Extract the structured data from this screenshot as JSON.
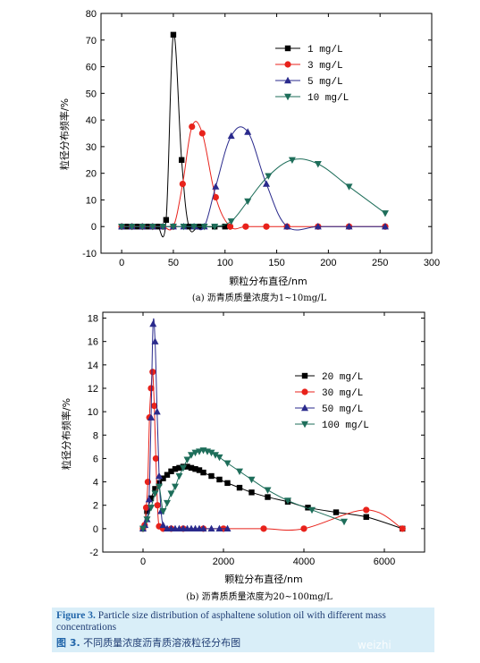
{
  "chart_data": [
    {
      "type": "line",
      "caption": "(a) 沥青质质量浓度为1~10mg/L",
      "xlabel": "颗粒分布直径/nm",
      "ylabel": "粒径分布频率/%",
      "xlim": [
        -20,
        300
      ],
      "ylim": [
        -10,
        80
      ],
      "xticks": [
        "0",
        "50",
        "100",
        "150",
        "200",
        "250",
        "300"
      ],
      "yticks": [
        "-10",
        "0",
        "10",
        "20",
        "30",
        "40",
        "50",
        "60",
        "70",
        "80"
      ],
      "legend_position": "top-right",
      "series": [
        {
          "name": "1 mg/L",
          "color": "#000000",
          "marker": "square",
          "x": [
            0,
            5,
            10,
            15,
            20,
            25,
            30,
            35,
            43,
            50,
            58,
            65,
            75,
            90,
            100
          ],
          "y": [
            0,
            0,
            0,
            0,
            0,
            0,
            0,
            0,
            2.5,
            72,
            25,
            0,
            0,
            0,
            0
          ]
        },
        {
          "name": "3 mg/L",
          "color": "#e8221b",
          "marker": "circle",
          "x": [
            0,
            10,
            20,
            30,
            40,
            50,
            59,
            68,
            78,
            91,
            105,
            120,
            140,
            160,
            190,
            220,
            255
          ],
          "y": [
            0,
            0,
            0,
            0,
            0,
            0,
            16,
            37.5,
            35,
            11,
            0,
            0,
            0,
            0,
            0,
            0,
            0
          ]
        },
        {
          "name": "5 mg/L",
          "color": "#2a2a8c",
          "marker": "triangle-up",
          "x": [
            0,
            10,
            20,
            30,
            40,
            50,
            60,
            70,
            80,
            91,
            106,
            122,
            140,
            160,
            190,
            220,
            255
          ],
          "y": [
            0,
            0,
            0,
            0,
            0,
            0,
            0,
            0,
            0,
            15,
            34,
            35.5,
            16,
            0,
            0,
            0,
            0
          ]
        },
        {
          "name": "10 mg/L",
          "color": "#1e6e5a",
          "marker": "triangle-down",
          "x": [
            0,
            10,
            20,
            30,
            40,
            50,
            60,
            70,
            80,
            90,
            106,
            122,
            142,
            165,
            190,
            220,
            255
          ],
          "y": [
            0,
            0,
            0,
            0,
            0,
            0,
            0,
            0,
            0,
            0,
            2,
            9.5,
            19,
            25,
            23.5,
            15,
            5
          ]
        }
      ]
    },
    {
      "type": "line",
      "caption": "(b) 沥青质质量浓度为20~100mg/L",
      "xlabel": "颗粒分布直径/nm",
      "ylabel": "粒径分布频率/%",
      "xlim": [
        -1000,
        7000
      ],
      "ylim": [
        -2,
        18.5
      ],
      "xticks": [
        "0",
        "2000",
        "4000",
        "6000"
      ],
      "yticks": [
        "-2",
        "0",
        "2",
        "4",
        "6",
        "8",
        "10",
        "12",
        "14",
        "16",
        "18"
      ],
      "legend_position": "right",
      "series": [
        {
          "name": "20 mg/L",
          "color": "#000000",
          "marker": "square",
          "x": [
            0,
            100,
            200,
            300,
            400,
            500,
            600,
            700,
            800,
            900,
            1000,
            1100,
            1200,
            1300,
            1400,
            1500,
            1700,
            1900,
            2100,
            2400,
            2700,
            3100,
            3600,
            4100,
            4800,
            5550,
            6450
          ],
          "y": [
            0,
            1.5,
            2.6,
            3.4,
            3.9,
            4.3,
            4.6,
            4.9,
            5.1,
            5.2,
            5.3,
            5.3,
            5.2,
            5.1,
            5.0,
            4.8,
            4.5,
            4.2,
            3.9,
            3.5,
            3.1,
            2.7,
            2.3,
            1.8,
            1.4,
            1.0,
            0.0
          ]
        },
        {
          "name": "30 mg/L",
          "color": "#e8221b",
          "marker": "circle",
          "x": [
            0,
            40,
            80,
            120,
            160,
            200,
            240,
            280,
            320,
            360,
            400,
            500,
            700,
            1000,
            1500,
            2000,
            3000,
            4000,
            5550,
            6450
          ],
          "y": [
            0,
            0.3,
            1.8,
            4.0,
            9.5,
            12.0,
            13.4,
            10.5,
            6.0,
            2.0,
            0.2,
            0,
            0,
            0,
            0,
            0,
            0,
            0,
            1.6,
            0
          ]
        },
        {
          "name": "50 mg/L",
          "color": "#2a2a8c",
          "marker": "triangle-up",
          "x": [
            0,
            50,
            100,
            150,
            200,
            250,
            300,
            350,
            400,
            450,
            500,
            600,
            700,
            800,
            900,
            1000,
            1100,
            1200,
            1300,
            1400,
            1500,
            1700,
            1900,
            2100
          ],
          "y": [
            0,
            0.3,
            0.8,
            2.5,
            9.5,
            17.5,
            16.0,
            10.0,
            4.5,
            1.5,
            0.3,
            0,
            0,
            0,
            0,
            0,
            0,
            0,
            0,
            0,
            0,
            0,
            0,
            0
          ]
        },
        {
          "name": "100 mg/L",
          "color": "#1e6e5a",
          "marker": "triangle-down",
          "x": [
            0,
            100,
            200,
            300,
            400,
            500,
            600,
            700,
            800,
            900,
            1000,
            1100,
            1200,
            1300,
            1400,
            1500,
            1600,
            1700,
            1800,
            1900,
            2100,
            2400,
            2700,
            3100,
            3600,
            4200,
            5000
          ],
          "y": [
            0,
            0.8,
            1.8,
            3.0,
            3.6,
            1.5,
            2.2,
            3.0,
            3.6,
            4.5,
            5.2,
            5.9,
            6.3,
            6.5,
            6.6,
            6.7,
            6.6,
            6.5,
            6.3,
            6.1,
            5.6,
            4.9,
            4.2,
            3.3,
            2.4,
            1.6,
            0.6
          ]
        }
      ]
    }
  ],
  "caption": {
    "en_label": "Figure 3.",
    "en_text": "Particle size distribution of asphaltene solution oil with different mass concentrations",
    "zh_label": "图 3.",
    "zh_text": "不同质量浓度沥青质溶液粒径分布图"
  },
  "watermark": "weizhi"
}
